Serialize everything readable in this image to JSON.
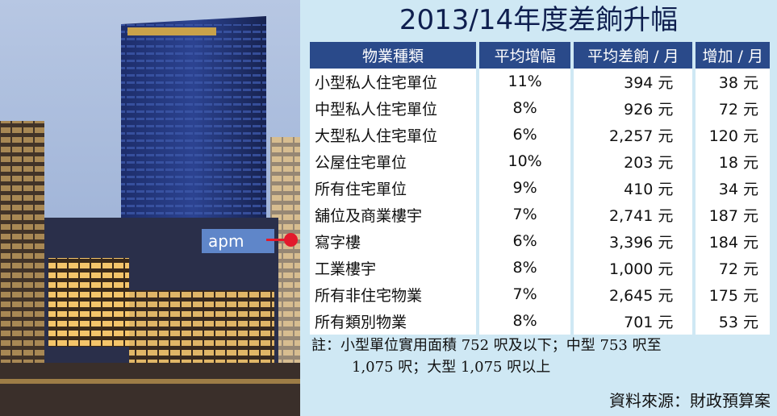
{
  "title": "2013/14年度差餉升幅",
  "table": {
    "headers": [
      "物業種類",
      "平均增幅",
      "平均差餉 / 月",
      "增加 / 月"
    ],
    "rows": [
      [
        "小型私人住宅單位",
        "11%",
        "394 元",
        "38 元"
      ],
      [
        "中型私人住宅單位",
        "8%",
        "926 元",
        "72 元"
      ],
      [
        "大型私人住宅單位",
        "6%",
        "2,257 元",
        "120 元"
      ],
      [
        "公屋住宅單位",
        "10%",
        "203 元",
        "18 元"
      ],
      [
        "所有住宅單位",
        "9%",
        "410 元",
        "34 元"
      ],
      [
        "舖位及商業樓宇",
        "7%",
        "2,741 元",
        "187 元"
      ],
      [
        "寫字樓",
        "6%",
        "3,396 元",
        "184 元"
      ],
      [
        "工業樓宇",
        "8%",
        "1,000 元",
        "72 元"
      ],
      [
        "所有非住宅物業",
        "7%",
        "2,645 元",
        "175 元"
      ],
      [
        "所有類別物業",
        "8%",
        "701 元",
        "53 元"
      ]
    ]
  },
  "note": {
    "line1": "註：小型單位實用面積 752 呎及以下；中型 753 呎至",
    "line2": "1,075 呎；大型 1,075 呎以上"
  },
  "source": "資料來源：財政預算案",
  "photo": {
    "sign_text": "apm"
  },
  "colors": {
    "panel_bg": "#cfe8f4",
    "header_bg": "#2a4a8a",
    "title_text": "#0f1f4f",
    "pointer": "#e21a2c"
  }
}
